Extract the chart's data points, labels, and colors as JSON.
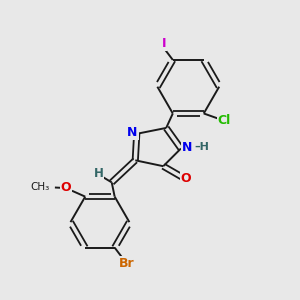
{
  "background_color": "#e8e8e8",
  "bond_color": "#1a1a1a",
  "atom_colors": {
    "N": "#0000ee",
    "O": "#dd0000",
    "Br": "#cc6600",
    "Cl": "#22bb00",
    "I": "#cc00cc",
    "H": "#336666",
    "C": "#1a1a1a"
  },
  "figsize": [
    3.0,
    3.0
  ],
  "dpi": 100
}
